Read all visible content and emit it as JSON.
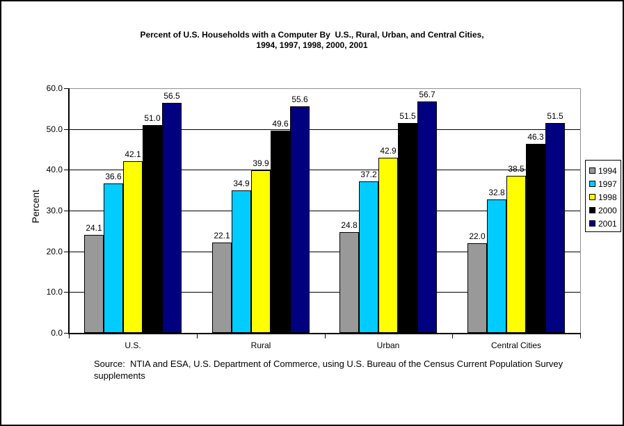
{
  "chart": {
    "title_line1": "Percent of U.S. Households with a Computer By  U.S., Rural, Urban, and Central Cities,",
    "title_line2": "1994, 1997, 1998, 2000, 2001",
    "y_axis_title": "Percent",
    "source_line1": "Source:  NTIA and ESA, U.S. Department of Commerce, using U.S. Bureau of the Census Current Population Survey",
    "source_line2": "supplements"
  },
  "chart_data": {
    "type": "bar",
    "title": "Percent of U.S. Households with a Computer By U.S., Rural, Urban, and Central Cities, 1994, 1997, 1998, 2000, 2001",
    "categories": [
      "U.S.",
      "Rural",
      "Urban",
      "Central Cities"
    ],
    "series": [
      {
        "name": "1994",
        "color": "#999999",
        "values": [
          24.1,
          22.1,
          24.8,
          22.0
        ]
      },
      {
        "name": "1997",
        "color": "#00CCFF",
        "values": [
          36.6,
          34.9,
          37.2,
          32.8
        ]
      },
      {
        "name": "1998",
        "color": "#FFFF00",
        "values": [
          42.1,
          39.9,
          42.9,
          38.5
        ]
      },
      {
        "name": "2000",
        "color": "#000000",
        "values": [
          51.0,
          49.6,
          51.5,
          46.3
        ]
      },
      {
        "name": "2001",
        "color": "#000080",
        "values": [
          56.5,
          55.6,
          56.7,
          51.5
        ]
      }
    ],
    "ylabel": "Percent",
    "ylim": [
      0,
      60
    ],
    "ytick_step": 10,
    "ytick_labels": [
      "0.0",
      "10.0",
      "20.0",
      "30.0",
      "40.0",
      "50.0",
      "60.0"
    ],
    "grid": true,
    "value_labels": true,
    "legend_position": "right",
    "source": "Source:  NTIA and ESA, U.S. Department of Commerce, using U.S. Bureau of the Census Current Population Survey supplements"
  }
}
